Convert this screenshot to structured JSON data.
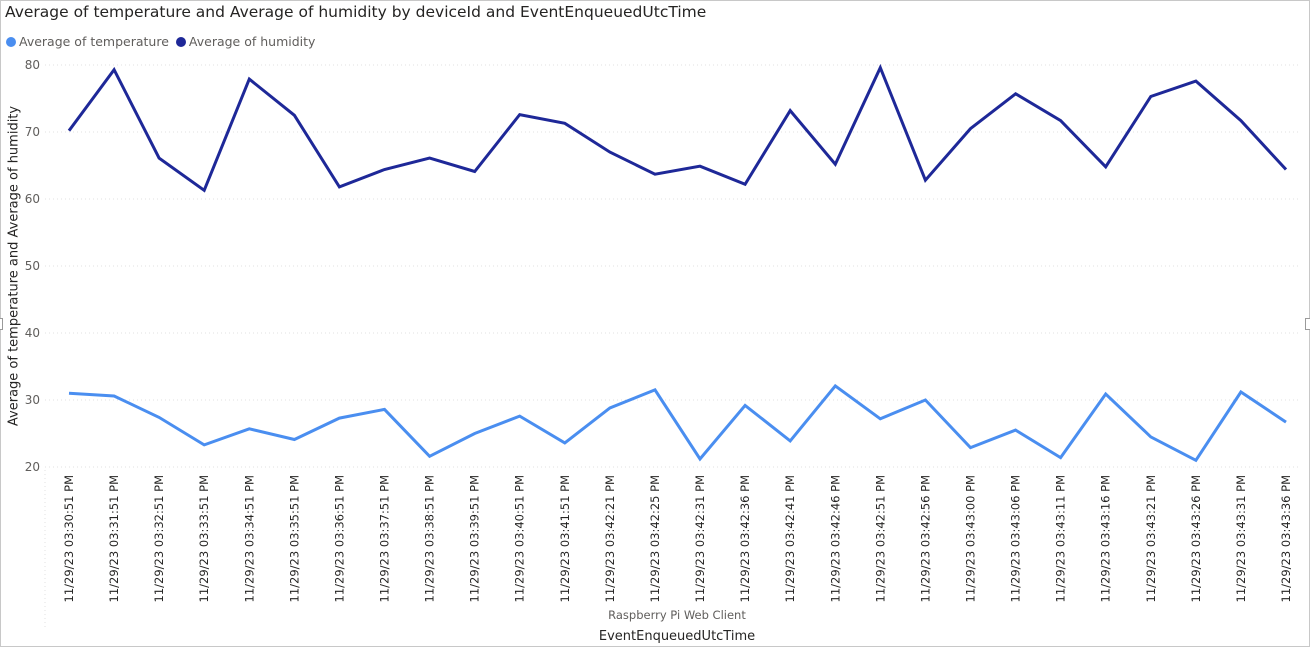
{
  "visual": {
    "title": "Average of temperature and Average of humidity by deviceId and EventEnqueuedUtcTime",
    "group_label": "Raspberry Pi Web Client"
  },
  "colors": {
    "temperature": "#4a8ef0",
    "humidity": "#1e2898",
    "gridline": "#e0e0e0",
    "tick_text": "#605e5c"
  },
  "chart_data": {
    "type": "line",
    "title": "Average of temperature and Average of humidity by deviceId and EventEnqueuedUtcTime",
    "xlabel": "EventEnqueuedUtcTime",
    "ylabel": "Average of temperature and Average of humidity",
    "ylim": [
      20,
      80
    ],
    "yticks": [
      20,
      30,
      40,
      50,
      60,
      70,
      80
    ],
    "grid": true,
    "legend_position": "top-left",
    "categories": [
      "11/29/23 03:30:51 PM",
      "11/29/23 03:31:51 PM",
      "11/29/23 03:32:51 PM",
      "11/29/23 03:33:51 PM",
      "11/29/23 03:34:51 PM",
      "11/29/23 03:35:51 PM",
      "11/29/23 03:36:51 PM",
      "11/29/23 03:37:51 PM",
      "11/29/23 03:38:51 PM",
      "11/29/23 03:39:51 PM",
      "11/29/23 03:40:51 PM",
      "11/29/23 03:41:51 PM",
      "11/29/23 03:42:21 PM",
      "11/29/23 03:42:25 PM",
      "11/29/23 03:42:31 PM",
      "11/29/23 03:42:36 PM",
      "11/29/23 03:42:41 PM",
      "11/29/23 03:42:46 PM",
      "11/29/23 03:42:51 PM",
      "11/29/23 03:42:56 PM",
      "11/29/23 03:43:00 PM",
      "11/29/23 03:43:06 PM",
      "11/29/23 03:43:11 PM",
      "11/29/23 03:43:16 PM",
      "11/29/23 03:43:21 PM",
      "11/29/23 03:43:26 PM",
      "11/29/23 03:43:31 PM",
      "11/29/23 03:43:36 PM"
    ],
    "series": [
      {
        "name": "Average of temperature",
        "color": "#4a8ef0",
        "values": [
          31.0,
          30.6,
          27.4,
          23.3,
          25.7,
          24.1,
          27.3,
          28.6,
          21.6,
          25.0,
          27.6,
          23.6,
          28.8,
          31.5,
          21.2,
          29.2,
          23.9,
          32.1,
          27.2,
          30.0,
          22.9,
          25.5,
          21.4,
          30.9,
          24.5,
          21.0,
          31.2,
          26.7
        ]
      },
      {
        "name": "Average of humidity",
        "color": "#1e2898",
        "values": [
          70.2,
          79.3,
          66.1,
          61.3,
          77.9,
          72.5,
          61.8,
          64.4,
          66.1,
          64.1,
          72.6,
          71.3,
          67.0,
          63.7,
          64.9,
          62.2,
          73.2,
          65.2,
          79.6,
          62.8,
          70.5,
          75.7,
          71.7,
          64.8,
          75.3,
          77.6,
          71.7,
          64.4
        ]
      }
    ]
  }
}
